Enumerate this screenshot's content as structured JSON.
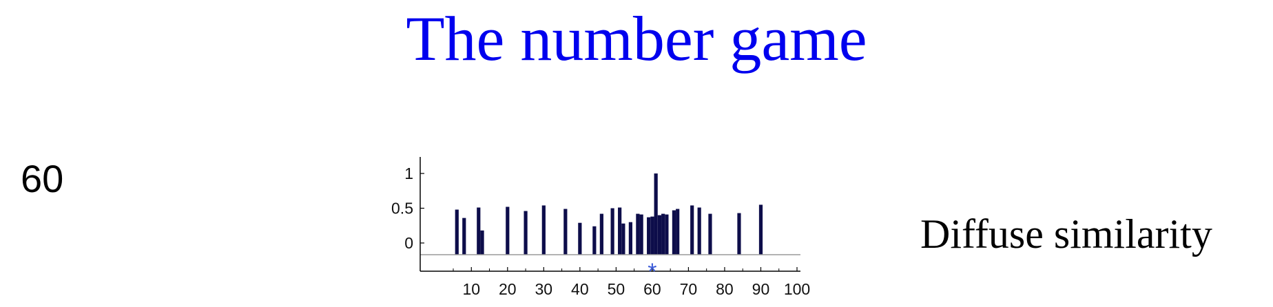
{
  "title": "The number game",
  "observed_example": "60",
  "caption": "Diffuse similarity",
  "colors": {
    "title": "#0000ee",
    "bars": "#0d0d4a",
    "baseline": "#9a9a9a",
    "marker": "#3b5bd9",
    "axis": "#000000"
  },
  "chart_data": {
    "type": "bar",
    "xlim": [
      1,
      100
    ],
    "ylim": [
      -0.15,
      1.2
    ],
    "xticks": [
      10,
      20,
      30,
      40,
      50,
      60,
      70,
      80,
      90,
      100
    ],
    "yticks": [
      0,
      0.5,
      1
    ],
    "ytick_labels": [
      "0",
      "0.5",
      "1"
    ],
    "observed_marker": {
      "x": 60,
      "symbol": "*"
    },
    "bars": [
      {
        "x": 6,
        "y": 0.48
      },
      {
        "x": 8,
        "y": 0.36
      },
      {
        "x": 12,
        "y": 0.51
      },
      {
        "x": 13,
        "y": 0.18
      },
      {
        "x": 20,
        "y": 0.52
      },
      {
        "x": 25,
        "y": 0.46
      },
      {
        "x": 30,
        "y": 0.54
      },
      {
        "x": 36,
        "y": 0.49
      },
      {
        "x": 40,
        "y": 0.29
      },
      {
        "x": 44,
        "y": 0.24
      },
      {
        "x": 46,
        "y": 0.42
      },
      {
        "x": 49,
        "y": 0.5
      },
      {
        "x": 51,
        "y": 0.51
      },
      {
        "x": 52,
        "y": 0.28
      },
      {
        "x": 54,
        "y": 0.3
      },
      {
        "x": 56,
        "y": 0.42
      },
      {
        "x": 57,
        "y": 0.41
      },
      {
        "x": 59,
        "y": 0.37
      },
      {
        "x": 60,
        "y": 0.38
      },
      {
        "x": 61,
        "y": 1.0
      },
      {
        "x": 62,
        "y": 0.4
      },
      {
        "x": 63,
        "y": 0.42
      },
      {
        "x": 64,
        "y": 0.41
      },
      {
        "x": 66,
        "y": 0.47
      },
      {
        "x": 67,
        "y": 0.49
      },
      {
        "x": 71,
        "y": 0.54
      },
      {
        "x": 73,
        "y": 0.51
      },
      {
        "x": 76,
        "y": 0.42
      },
      {
        "x": 84,
        "y": 0.43
      },
      {
        "x": 90,
        "y": 0.55
      }
    ]
  }
}
